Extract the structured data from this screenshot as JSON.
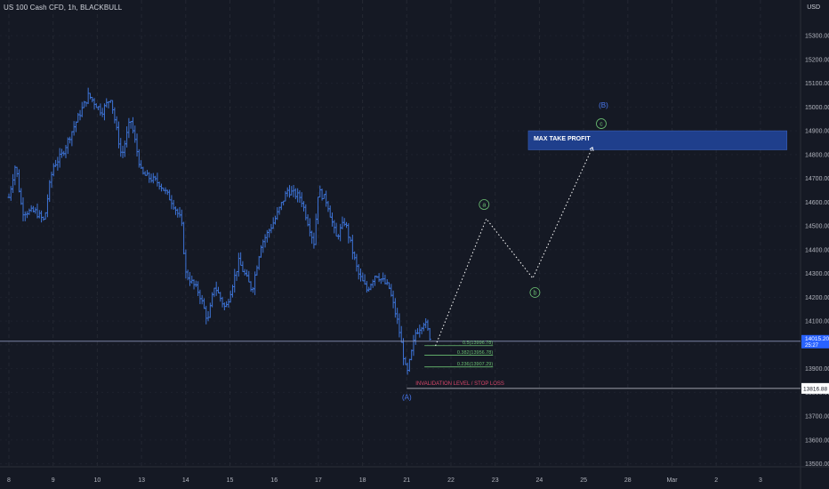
{
  "header": {
    "symbol_title": "US 100 Cash CFD, 1h, BLACKBULL",
    "currency": "USD"
  },
  "colors": {
    "background": "#151924",
    "grid": "#2a2e39",
    "bars": "#3d73d6",
    "text": "#b2b5be",
    "wave_green": "#6bbf72",
    "wave_blue": "#4b7bf5",
    "invalidation_red": "#d9466a",
    "take_profit_box": "#1f3f8c",
    "projection_line": "#ffffff"
  },
  "chart_data": {
    "type": "bar",
    "title": "US 100 Cash CFD, 1h, BLACKBULL",
    "y_unit": "USD",
    "ylim": [
      13450,
      15420
    ],
    "y_ticks": [
      "15300.00",
      "15200.00",
      "15100.00",
      "15000.00",
      "14900.00",
      "14800.00",
      "14700.00",
      "14600.00",
      "14500.00",
      "14400.00",
      "14300.00",
      "14200.00",
      "14100.00",
      "14000.00",
      "13900.00",
      "13800.00",
      "13700.00",
      "13600.00",
      "13500.00"
    ],
    "x_ticks": [
      "8",
      "9",
      "10",
      "13",
      "14",
      "15",
      "16",
      "17",
      "18",
      "21",
      "22",
      "23",
      "24",
      "25",
      "28",
      "Mar",
      "2",
      "3"
    ],
    "grid": true,
    "price_path": [
      {
        "x": 0.0,
        "y": 14620
      },
      {
        "x": 0.15,
        "y": 14760
      },
      {
        "x": 0.3,
        "y": 14560
      },
      {
        "x": 0.6,
        "y": 14560
      },
      {
        "x": 0.8,
        "y": 14520
      },
      {
        "x": 0.9,
        "y": 14650
      },
      {
        "x": 1.0,
        "y": 14750
      },
      {
        "x": 1.2,
        "y": 14800
      },
      {
        "x": 1.5,
        "y": 14930
      },
      {
        "x": 1.8,
        "y": 15050
      },
      {
        "x": 2.1,
        "y": 14980
      },
      {
        "x": 2.3,
        "y": 15040
      },
      {
        "x": 2.55,
        "y": 14790
      },
      {
        "x": 2.75,
        "y": 14950
      },
      {
        "x": 3.0,
        "y": 14720
      },
      {
        "x": 3.4,
        "y": 14680
      },
      {
        "x": 3.7,
        "y": 14600
      },
      {
        "x": 3.9,
        "y": 14520
      },
      {
        "x": 4.0,
        "y": 14300
      },
      {
        "x": 4.3,
        "y": 14220
      },
      {
        "x": 4.5,
        "y": 14100
      },
      {
        "x": 4.65,
        "y": 14250
      },
      {
        "x": 4.9,
        "y": 14150
      },
      {
        "x": 5.2,
        "y": 14350
      },
      {
        "x": 5.5,
        "y": 14230
      },
      {
        "x": 5.7,
        "y": 14420
      },
      {
        "x": 6.0,
        "y": 14520
      },
      {
        "x": 6.3,
        "y": 14650
      },
      {
        "x": 6.6,
        "y": 14620
      },
      {
        "x": 6.9,
        "y": 14430
      },
      {
        "x": 7.0,
        "y": 14650
      },
      {
        "x": 7.2,
        "y": 14600
      },
      {
        "x": 7.4,
        "y": 14450
      },
      {
        "x": 7.6,
        "y": 14520
      },
      {
        "x": 7.9,
        "y": 14300
      },
      {
        "x": 8.1,
        "y": 14230
      },
      {
        "x": 8.3,
        "y": 14300
      },
      {
        "x": 8.6,
        "y": 14240
      },
      {
        "x": 8.8,
        "y": 14090
      },
      {
        "x": 9.0,
        "y": 13870
      },
      {
        "x": 9.2,
        "y": 14050
      },
      {
        "x": 9.4,
        "y": 14100
      },
      {
        "x": 9.55,
        "y": 14020
      }
    ],
    "current_price": "14015.20",
    "current_price_time": "25:27",
    "invalidation_price": "13816.88",
    "fib_levels": [
      {
        "label": "0.5(13996.78)",
        "value": 13996.78
      },
      {
        "label": "0.382(13956.78)",
        "value": 13956.78
      },
      {
        "label": "0.236(13907.29)",
        "value": 13907.29
      }
    ],
    "annotations": {
      "invalidation": "INVALIDATION LEVEL / STOP LOSS",
      "take_profit": "MAX TAKE PROFIT",
      "wave_A": "(A)",
      "wave_a": "a",
      "wave_b": "b",
      "wave_c": "c",
      "wave_B": "(B)"
    },
    "projection_path": [
      {
        "x": 9.65,
        "y": 13996
      },
      {
        "x": 10.8,
        "y": 14530
      },
      {
        "x": 11.85,
        "y": 14280
      },
      {
        "x": 13.2,
        "y": 14830
      }
    ],
    "take_profit_zone": {
      "x_from": 11.75,
      "x_to": 17.6,
      "y_high": 14900,
      "y_low": 14820
    }
  }
}
